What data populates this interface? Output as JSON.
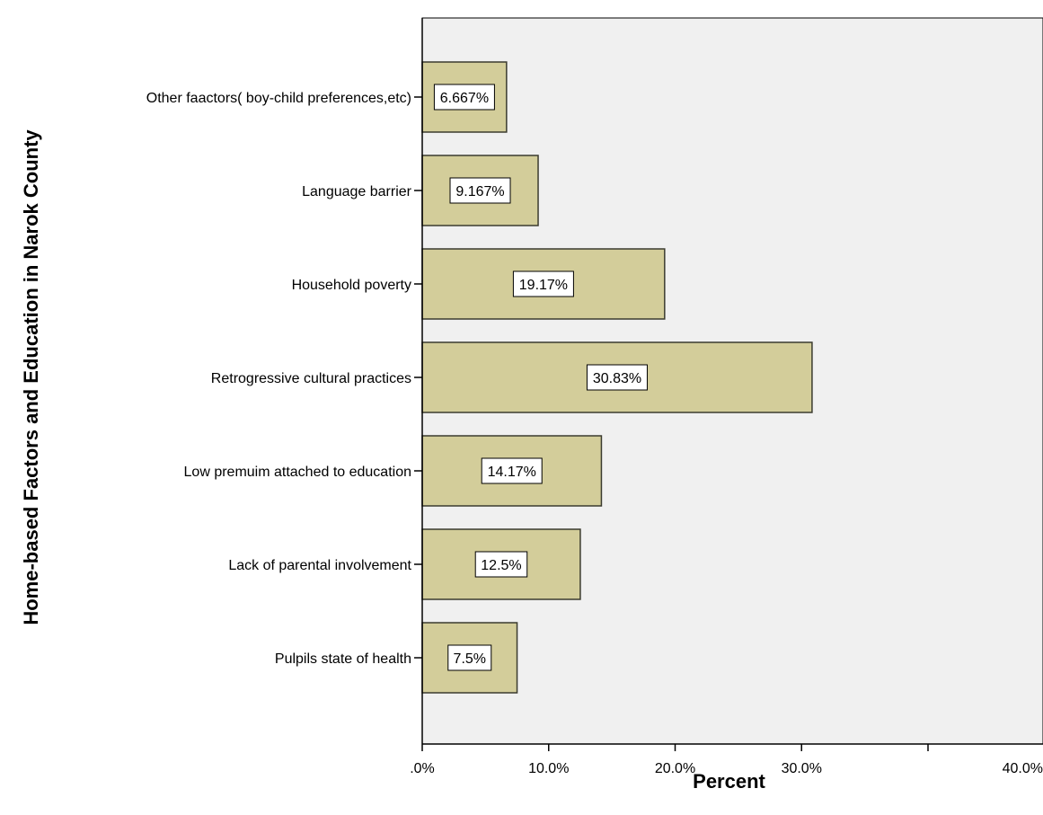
{
  "chart_data": {
    "type": "bar",
    "orientation": "horizontal",
    "title": "",
    "xlabel": "Percent",
    "ylabel": "Home-based Factors and Education in Narok County",
    "xlim": [
      0,
      40
    ],
    "x_ticks": [
      ".0%",
      "10.0%",
      "20.0%",
      "30.0%",
      "40.0%"
    ],
    "categories": [
      "Other faactors( boy-child preferences,etc)",
      "Language barrier",
      "Household poverty",
      "Retrogressive cultural practices",
      "Low premuim attached to education",
      "Lack of parental involvement",
      "Pulpils state of health"
    ],
    "values": [
      6.667,
      9.167,
      19.17,
      30.83,
      14.17,
      12.5,
      7.5
    ],
    "data_labels": [
      "6.667%",
      "9.167%",
      "19.17%",
      "30.83%",
      "14.17%",
      "12.5%",
      "7.5%"
    ],
    "grid": false,
    "colors": {
      "bar_fill": "#d3cd9a",
      "bar_stroke": "#3b3b2f",
      "plot_background": "#f0f0f0",
      "label_box": "#ffffff"
    }
  }
}
